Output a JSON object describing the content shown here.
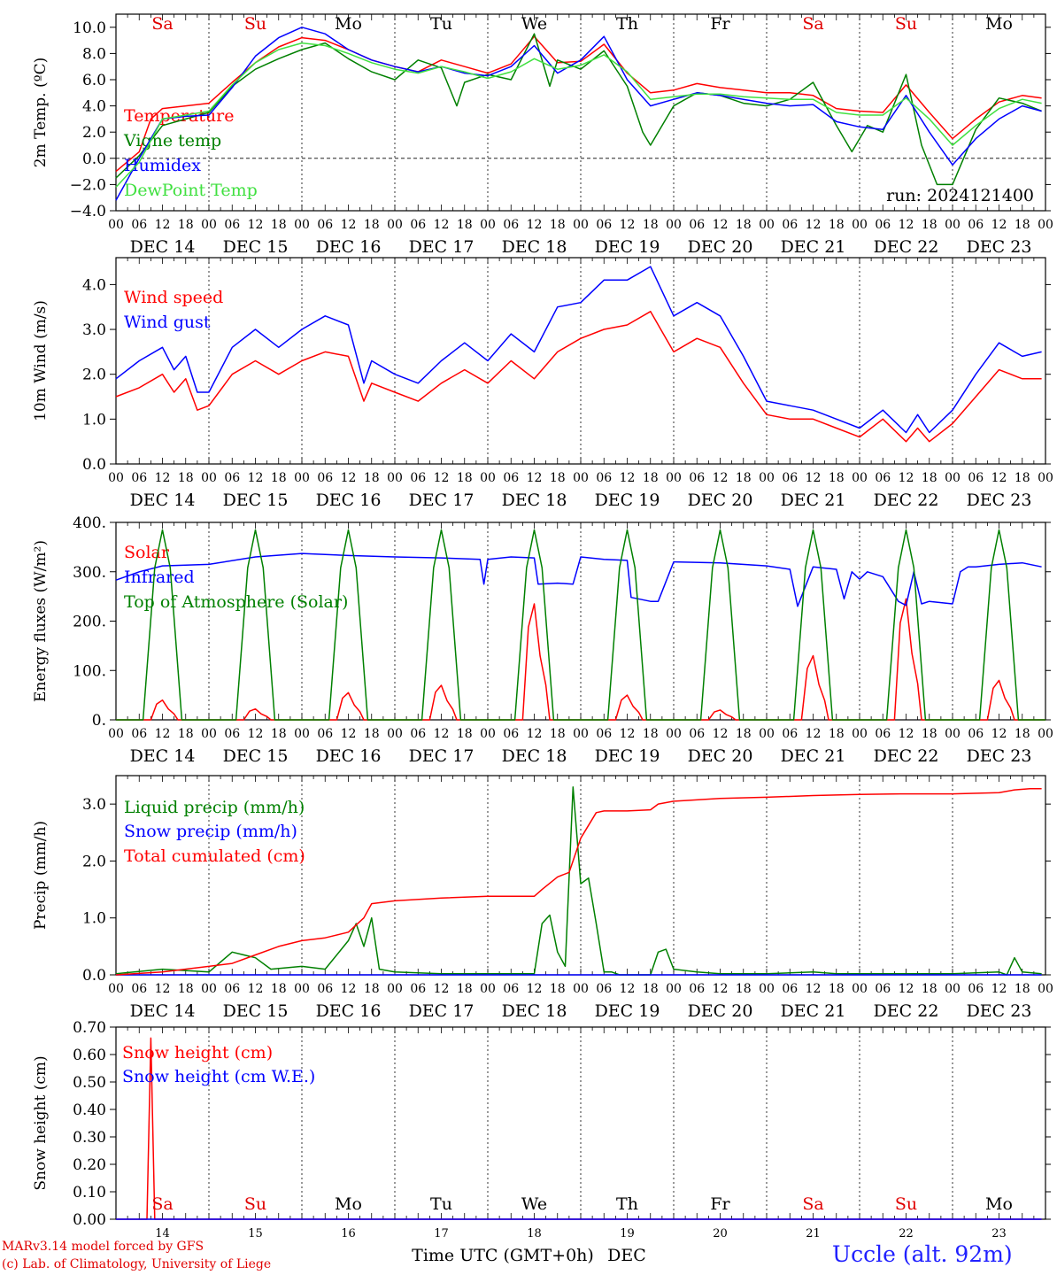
{
  "header": {
    "run_label": "run: 2024121400",
    "weekdays": [
      "Sa",
      "Su",
      "Mo",
      "Tu",
      "We",
      "Th",
      "Fr",
      "Sa",
      "Su",
      "Mo"
    ],
    "weekday_colors": [
      "#e00000",
      "#e00000",
      "#000000",
      "#000000",
      "#000000",
      "#000000",
      "#000000",
      "#e00000",
      "#e00000",
      "#000000"
    ],
    "date_labels": [
      "DEC 14",
      "DEC 15",
      "DEC 16",
      "DEC 17",
      "DEC 18",
      "DEC 19",
      "DEC 20",
      "DEC 21",
      "DEC 22",
      "DEC 23"
    ],
    "hour_labels": [
      "00",
      "06",
      "12",
      "18"
    ],
    "final_hour_label": "00"
  },
  "footer": {
    "credit_line1": "MARv3.14 model forced by GFS",
    "credit_line2": "(c) Lab. of Climatology, University of Liege",
    "station": "Uccle (alt. 92m)",
    "x_axis_title": "Time UTC (GMT+0h)",
    "x_axis_month": "DEC",
    "day_numbers": [
      "14",
      "15",
      "16",
      "17",
      "18",
      "19",
      "20",
      "21",
      "22",
      "23"
    ]
  },
  "chart_data": [
    {
      "type": "line",
      "ylabel": "2m Temp. (ºC)",
      "ylim": [
        -4,
        11
      ],
      "yticks": [
        "−4.0",
        "−2.0",
        "0.0",
        "2.0",
        "4.0",
        "6.0",
        "8.0",
        "10.0"
      ],
      "zero_line": true,
      "series": [
        {
          "name": "Temperature",
          "color": "#ff0000",
          "x": [
            0,
            6,
            9,
            12,
            18,
            24,
            30,
            36,
            42,
            48,
            54,
            60,
            66,
            72,
            78,
            84,
            90,
            96,
            102,
            108,
            114,
            120,
            126,
            132,
            138,
            144,
            150,
            156,
            162,
            168,
            174,
            180,
            186,
            192,
            198,
            204,
            210,
            216,
            222,
            228,
            234,
            239
          ],
          "y": [
            -1.0,
            0.5,
            3.0,
            3.8,
            4.0,
            4.2,
            5.8,
            7.3,
            8.5,
            9.2,
            9.0,
            8.3,
            7.5,
            7.0,
            6.6,
            7.5,
            7.0,
            6.5,
            7.2,
            9.3,
            7.3,
            7.4,
            8.7,
            6.5,
            5.0,
            5.2,
            5.7,
            5.4,
            5.2,
            5.0,
            5.0,
            4.8,
            3.8,
            3.6,
            3.5,
            5.6,
            3.5,
            1.5,
            3.0,
            4.3,
            4.8,
            4.6
          ]
        },
        {
          "name": "Vigne temp",
          "color": "#008000",
          "x": [
            0,
            6,
            12,
            18,
            24,
            30,
            36,
            42,
            48,
            54,
            60,
            66,
            72,
            78,
            84,
            88,
            90,
            96,
            102,
            108,
            112,
            114,
            120,
            126,
            132,
            136,
            138,
            144,
            150,
            156,
            162,
            168,
            174,
            180,
            186,
            190,
            194,
            198,
            204,
            208,
            212,
            216,
            222,
            228,
            234,
            239
          ],
          "y": [
            -1.5,
            0.2,
            2.5,
            3.0,
            3.5,
            5.5,
            6.8,
            7.6,
            8.3,
            8.8,
            7.6,
            6.6,
            6.0,
            7.5,
            6.9,
            4.0,
            5.8,
            6.4,
            6.0,
            9.5,
            5.5,
            7.5,
            6.8,
            8.2,
            5.5,
            2.0,
            1.0,
            4.0,
            5.0,
            4.8,
            4.2,
            4.0,
            4.5,
            5.8,
            2.5,
            0.5,
            2.5,
            2.0,
            6.4,
            1.0,
            -2.0,
            -2.0,
            2.2,
            4.6,
            4.2,
            3.6
          ]
        },
        {
          "name": "Humidex",
          "color": "#0000ff",
          "x": [
            0,
            6,
            12,
            18,
            24,
            30,
            36,
            42,
            48,
            54,
            60,
            66,
            72,
            78,
            84,
            90,
            96,
            102,
            108,
            114,
            120,
            126,
            132,
            138,
            144,
            150,
            156,
            162,
            168,
            174,
            180,
            186,
            192,
            198,
            204,
            210,
            216,
            222,
            228,
            234,
            239
          ],
          "y": [
            -3.2,
            0.0,
            3.0,
            3.2,
            3.3,
            5.4,
            7.8,
            9.2,
            10.0,
            9.5,
            8.3,
            7.5,
            7.0,
            6.6,
            7.0,
            6.5,
            6.3,
            7.0,
            8.6,
            6.5,
            7.5,
            9.3,
            6.0,
            4.0,
            4.5,
            5.0,
            4.8,
            4.5,
            4.2,
            4.0,
            4.1,
            2.8,
            2.4,
            2.2,
            4.8,
            2.0,
            -0.5,
            1.5,
            3.0,
            4.0,
            3.6
          ]
        },
        {
          "name": "DewPoint Temp",
          "color": "#40e040",
          "x": [
            0,
            6,
            12,
            18,
            24,
            30,
            36,
            42,
            48,
            54,
            60,
            66,
            72,
            78,
            84,
            90,
            96,
            102,
            108,
            114,
            120,
            126,
            132,
            138,
            144,
            150,
            156,
            162,
            168,
            174,
            180,
            186,
            192,
            198,
            204,
            210,
            216,
            222,
            228,
            234,
            239
          ],
          "y": [
            -2.2,
            -0.3,
            3.0,
            3.3,
            3.6,
            5.6,
            7.3,
            8.3,
            8.8,
            8.6,
            8.0,
            7.3,
            6.8,
            6.5,
            7.0,
            6.6,
            6.1,
            6.6,
            7.6,
            6.8,
            7.1,
            7.9,
            6.6,
            4.5,
            4.7,
            4.9,
            4.9,
            4.7,
            4.6,
            4.5,
            4.5,
            3.5,
            3.3,
            3.3,
            4.6,
            3.0,
            1.0,
            2.5,
            3.8,
            4.5,
            4.2
          ]
        }
      ]
    },
    {
      "type": "line",
      "ylabel": "10m Wind (m/s)",
      "ylim": [
        0,
        4.6
      ],
      "yticks": [
        "0.0",
        "1.0",
        "2.0",
        "3.0",
        "4.0"
      ],
      "series": [
        {
          "name": "Wind speed",
          "color": "#ff0000",
          "x": [
            0,
            6,
            12,
            15,
            18,
            21,
            24,
            30,
            36,
            42,
            48,
            54,
            60,
            64,
            66,
            72,
            78,
            84,
            90,
            96,
            102,
            108,
            114,
            120,
            126,
            132,
            138,
            144,
            150,
            156,
            162,
            168,
            174,
            180,
            186,
            192,
            198,
            204,
            207,
            210,
            216,
            222,
            228,
            234,
            239
          ],
          "y": [
            1.5,
            1.7,
            2.0,
            1.6,
            1.9,
            1.2,
            1.3,
            2.0,
            2.3,
            2.0,
            2.3,
            2.5,
            2.4,
            1.4,
            1.8,
            1.6,
            1.4,
            1.8,
            2.1,
            1.8,
            2.3,
            1.9,
            2.5,
            2.8,
            3.0,
            3.1,
            3.4,
            2.5,
            2.8,
            2.6,
            1.8,
            1.1,
            1.0,
            1.0,
            0.8,
            0.6,
            1.0,
            0.5,
            0.8,
            0.5,
            0.9,
            1.5,
            2.1,
            1.9,
            1.9
          ]
        },
        {
          "name": "Wind gust",
          "color": "#0000ff",
          "x": [
            0,
            6,
            12,
            15,
            18,
            21,
            24,
            30,
            36,
            42,
            48,
            54,
            60,
            64,
            66,
            72,
            78,
            84,
            90,
            96,
            102,
            108,
            114,
            120,
            126,
            132,
            138,
            144,
            150,
            156,
            162,
            168,
            174,
            180,
            186,
            192,
            198,
            204,
            207,
            210,
            216,
            222,
            228,
            234,
            239
          ],
          "y": [
            1.9,
            2.3,
            2.6,
            2.1,
            2.4,
            1.6,
            1.6,
            2.6,
            3.0,
            2.6,
            3.0,
            3.3,
            3.1,
            1.8,
            2.3,
            2.0,
            1.8,
            2.3,
            2.7,
            2.3,
            2.9,
            2.5,
            3.5,
            3.6,
            4.1,
            4.1,
            4.4,
            3.3,
            3.6,
            3.3,
            2.4,
            1.4,
            1.3,
            1.2,
            1.0,
            0.8,
            1.2,
            0.7,
            1.1,
            0.7,
            1.2,
            2.0,
            2.7,
            2.4,
            2.5
          ]
        }
      ]
    },
    {
      "type": "line",
      "ylabel": "Energy fluxes (W/m²)",
      "ylim": [
        0,
        400
      ],
      "yticks": [
        "0.",
        "100.",
        "200.",
        "300.",
        "400."
      ],
      "series": [
        {
          "name": "Solar",
          "color": "#ff0000",
          "peaks": [
            40,
            22,
            55,
            70,
            235,
            50,
            20,
            130,
            245,
            80
          ]
        },
        {
          "name": "Infrared",
          "color": "#0000ff",
          "x": [
            0,
            6,
            12,
            24,
            36,
            48,
            60,
            72,
            84,
            94,
            95,
            96,
            102,
            108,
            109,
            114,
            118,
            120,
            126,
            132,
            133,
            138,
            140,
            144,
            156,
            168,
            174,
            176,
            180,
            186,
            188,
            190,
            192,
            194,
            198,
            202,
            204,
            206,
            208,
            210,
            216,
            218,
            220,
            222,
            228,
            234,
            239
          ],
          "y": [
            283,
            300,
            312,
            315,
            330,
            337,
            333,
            330,
            328,
            325,
            275,
            325,
            330,
            328,
            275,
            277,
            275,
            330,
            325,
            323,
            248,
            240,
            240,
            320,
            318,
            312,
            305,
            230,
            310,
            305,
            245,
            300,
            285,
            300,
            290,
            240,
            232,
            300,
            235,
            240,
            235,
            300,
            310,
            310,
            315,
            318,
            310
          ]
        },
        {
          "name": "Top of Atmosphere (Solar)",
          "color": "#008000",
          "peaks": [
            385,
            385,
            385,
            385,
            385,
            385,
            385,
            385,
            385,
            385
          ]
        }
      ]
    },
    {
      "type": "line",
      "ylabel": "Precip (mm/h)",
      "ylim": [
        0,
        3.5
      ],
      "yticks": [
        "0.0",
        "1.0",
        "2.0",
        "3.0"
      ],
      "series": [
        {
          "name": "Liquid precip (mm/h)",
          "color": "#008000",
          "x": [
            0,
            12,
            24,
            30,
            33,
            36,
            40,
            48,
            54,
            60,
            62,
            64,
            66,
            68,
            72,
            84,
            96,
            108,
            110,
            112,
            114,
            116,
            118,
            120,
            122,
            124,
            126,
            128,
            130,
            132,
            138,
            140,
            142,
            144,
            150,
            156,
            168,
            180,
            186,
            192,
            204,
            216,
            228,
            230,
            232,
            234,
            239
          ],
          "y": [
            0.02,
            0.1,
            0.05,
            0.4,
            0.35,
            0.3,
            0.1,
            0.15,
            0.1,
            0.6,
            0.9,
            0.5,
            1.0,
            0.1,
            0.05,
            0.02,
            0.02,
            0.02,
            0.9,
            1.05,
            0.4,
            0.15,
            3.3,
            1.6,
            1.7,
            0.9,
            0.05,
            0.05,
            0.0,
            0.0,
            0.0,
            0.4,
            0.45,
            0.1,
            0.05,
            0.02,
            0.02,
            0.05,
            0.02,
            0.02,
            0.02,
            0.02,
            0.05,
            0.0,
            0.3,
            0.05,
            0.02
          ]
        },
        {
          "name": "Snow precip (mm/h)",
          "color": "#0000ff",
          "x": [
            0,
            239
          ],
          "y": [
            0,
            0
          ]
        },
        {
          "name": "Total cumulated (cm)",
          "color": "#ff0000",
          "x": [
            0,
            12,
            24,
            30,
            36,
            42,
            48,
            54,
            60,
            64,
            66,
            72,
            84,
            96,
            108,
            110,
            114,
            117,
            118,
            120,
            124,
            126,
            132,
            138,
            140,
            144,
            156,
            168,
            180,
            192,
            204,
            216,
            228,
            232,
            236,
            239
          ],
          "y": [
            0.0,
            0.05,
            0.15,
            0.2,
            0.35,
            0.5,
            0.6,
            0.65,
            0.75,
            1.0,
            1.25,
            1.3,
            1.35,
            1.38,
            1.38,
            1.5,
            1.72,
            1.8,
            2.0,
            2.4,
            2.85,
            2.88,
            2.88,
            2.9,
            3.0,
            3.05,
            3.1,
            3.12,
            3.15,
            3.17,
            3.18,
            3.18,
            3.2,
            3.25,
            3.27,
            3.27
          ]
        }
      ]
    },
    {
      "type": "line",
      "ylabel": "Snow height (cm)",
      "ylim": [
        0,
        0.7
      ],
      "yticks": [
        "0.00",
        "0.10",
        "0.20",
        "0.30",
        "0.40",
        "0.50",
        "0.60",
        "0.70"
      ],
      "series": [
        {
          "name": "Snow height (cm)",
          "color": "#ff0000",
          "x": [
            0,
            8,
            9,
            10,
            239
          ],
          "y": [
            0,
            0,
            0.66,
            0,
            0
          ]
        },
        {
          "name": "Snow height (cm W.E.)",
          "color": "#0000ff",
          "x": [
            0,
            239
          ],
          "y": [
            0,
            0
          ]
        }
      ]
    }
  ]
}
